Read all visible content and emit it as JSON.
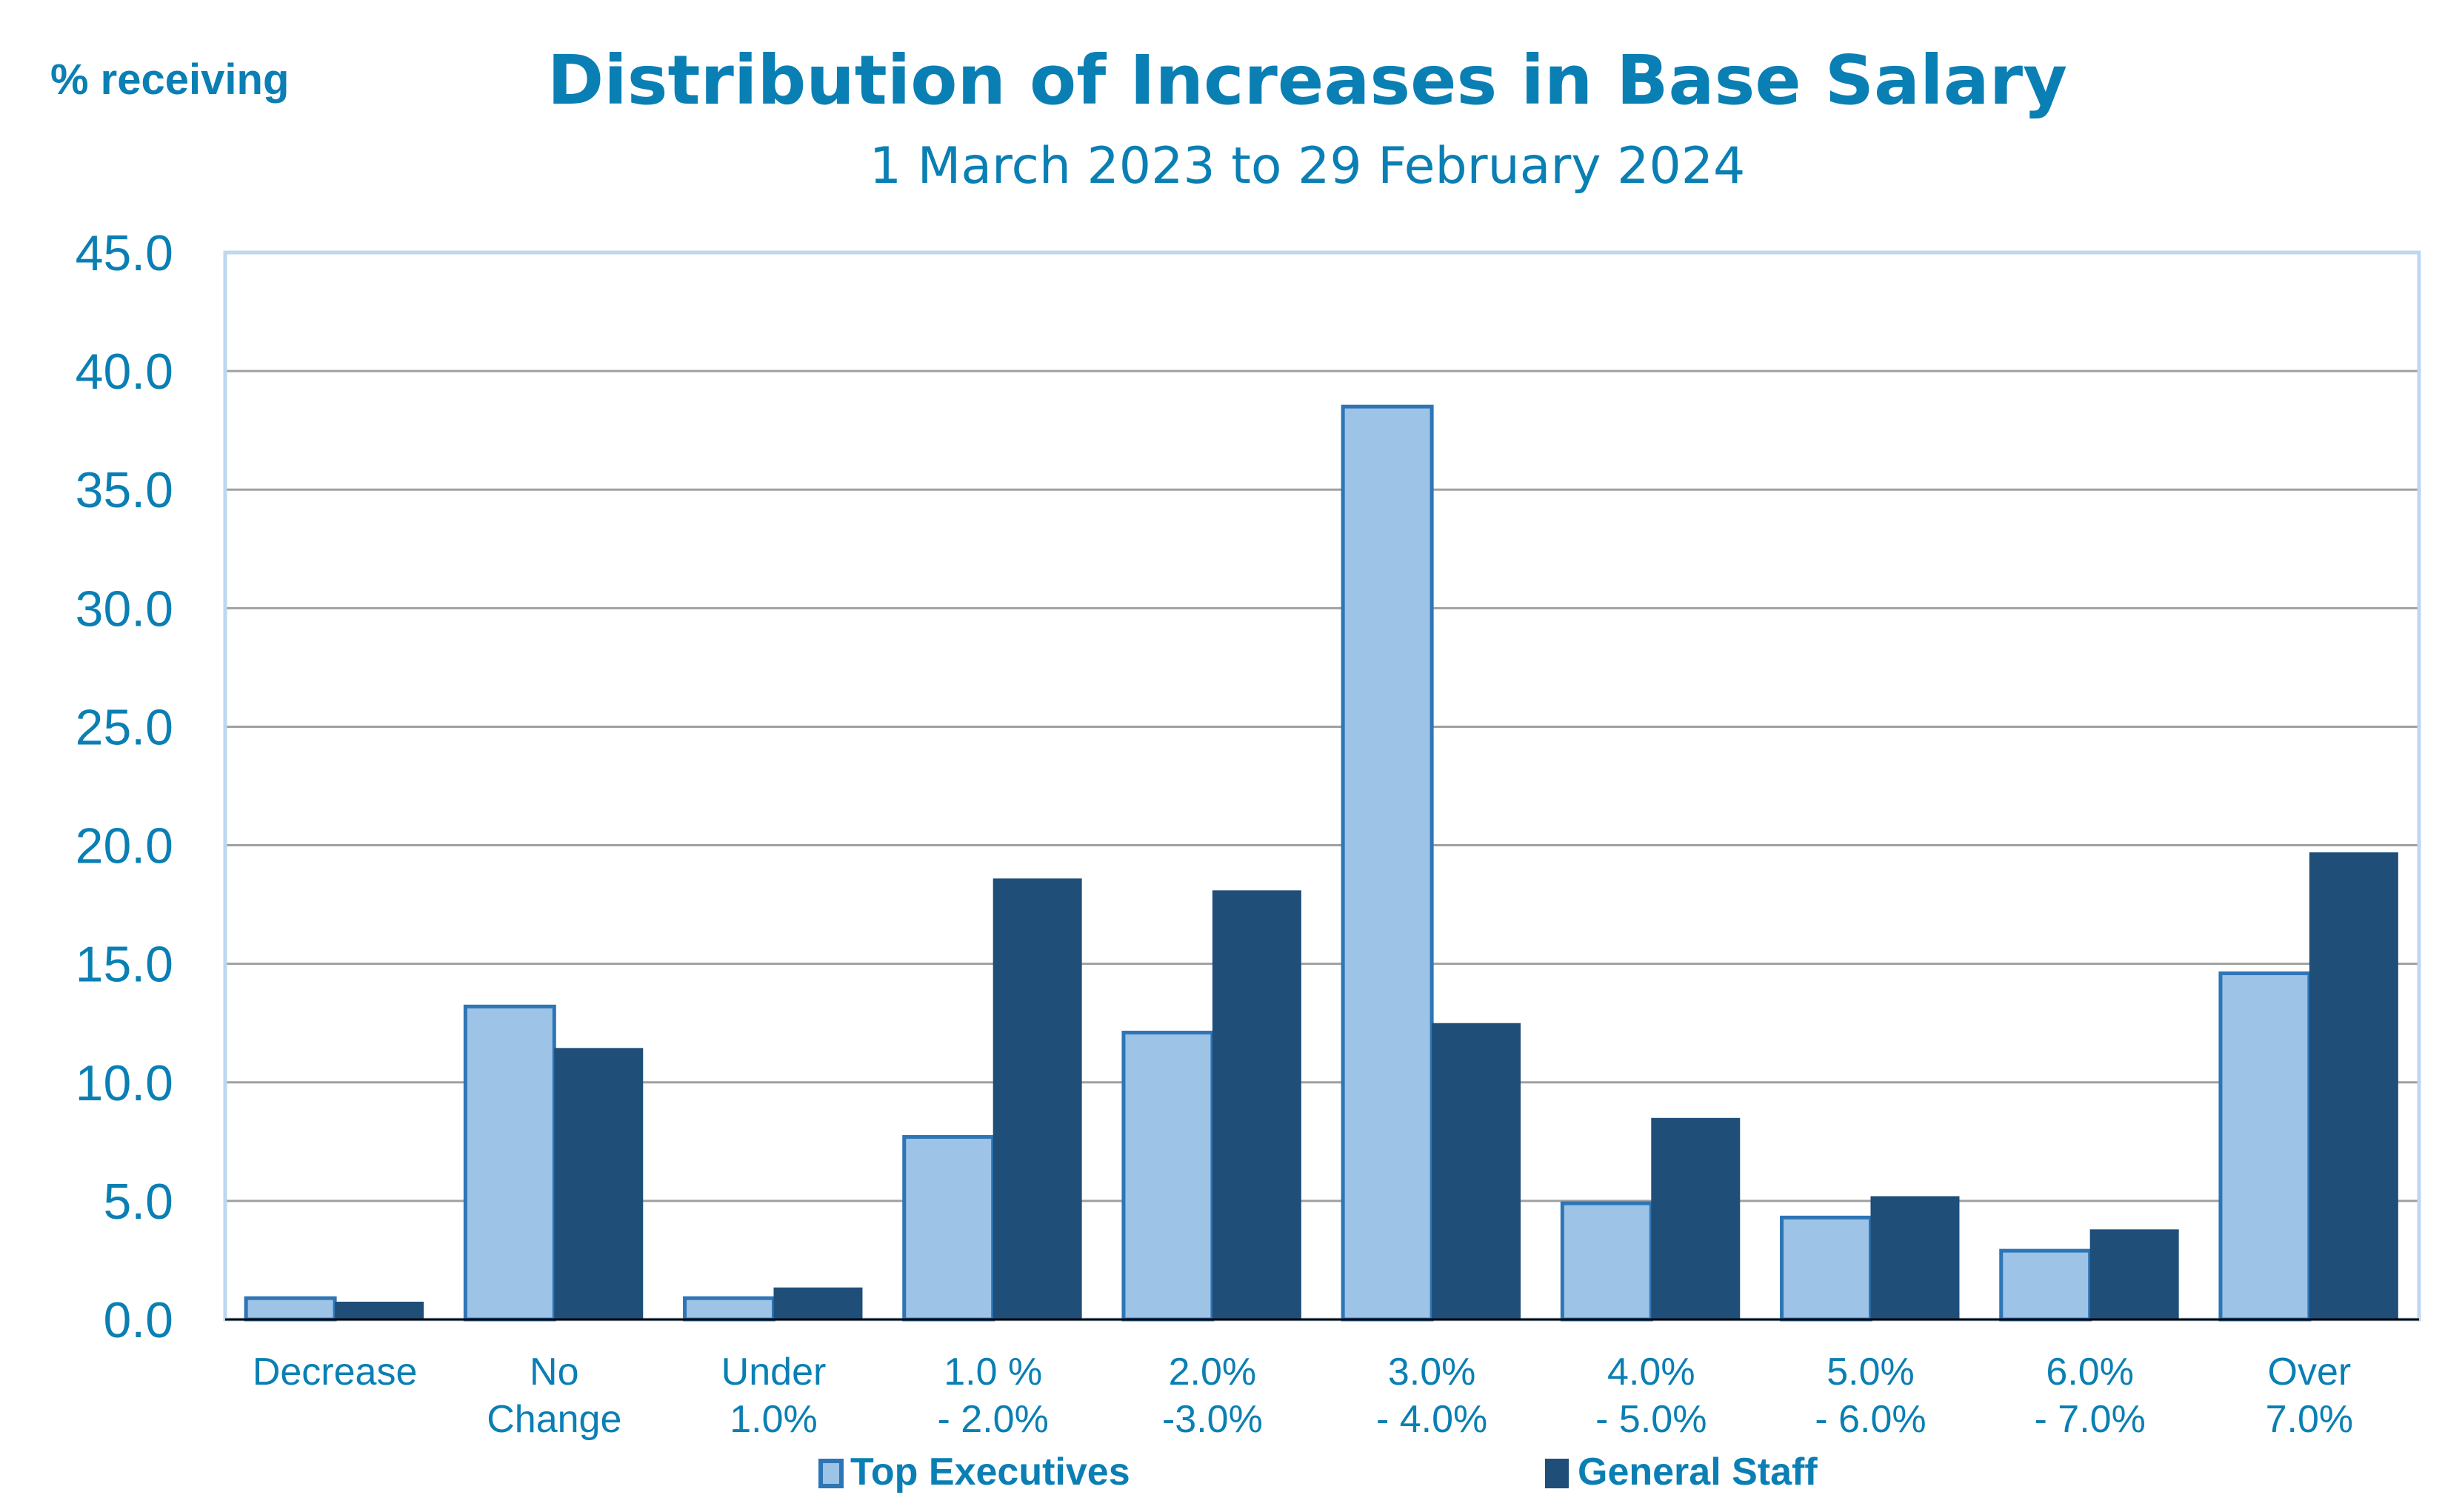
{
  "chart_data": {
    "type": "bar",
    "title": "Distribution of Increases in Base Salary",
    "subtitle": "1 March 2023 to 29 February 2024",
    "xlabel": "",
    "ylabel": "% receiving",
    "ylim": [
      0,
      45
    ],
    "ytick_step": 5,
    "yticks": [
      "0.0",
      "5.0",
      "10.0",
      "15.0",
      "20.0",
      "25.0",
      "30.0",
      "35.0",
      "40.0",
      "45.0"
    ],
    "grid": true,
    "legend_position": "bottom",
    "categories": [
      [
        "Decrease"
      ],
      [
        "No",
        "Change"
      ],
      [
        "Under",
        "1.0%"
      ],
      [
        "1.0 %",
        "- 2.0%"
      ],
      [
        "2.0%",
        "-3.0%"
      ],
      [
        "3.0%",
        "- 4.0%"
      ],
      [
        "4.0%",
        "- 5.0%"
      ],
      [
        "5.0%",
        "- 6.0%"
      ],
      [
        "6.0%",
        "- 7.0%"
      ],
      [
        "Over",
        "7.0%"
      ]
    ],
    "series": [
      {
        "name": "Top Executives",
        "color": "#9dc3e6",
        "border": "#2e75b6",
        "values": [
          0.9,
          13.2,
          0.9,
          7.7,
          12.1,
          38.5,
          4.9,
          4.3,
          2.9,
          14.6
        ]
      },
      {
        "name": "General Staff",
        "color": "#1f4e79",
        "border": "#1f4e79",
        "values": [
          0.75,
          11.45,
          1.35,
          18.6,
          18.1,
          12.5,
          8.5,
          5.2,
          3.8,
          19.7
        ]
      }
    ]
  },
  "colors": {
    "text": "#0a7fb4",
    "gridline": "#a0a0a0",
    "plot_border": "#bdd7ee",
    "axis": "#000000"
  }
}
